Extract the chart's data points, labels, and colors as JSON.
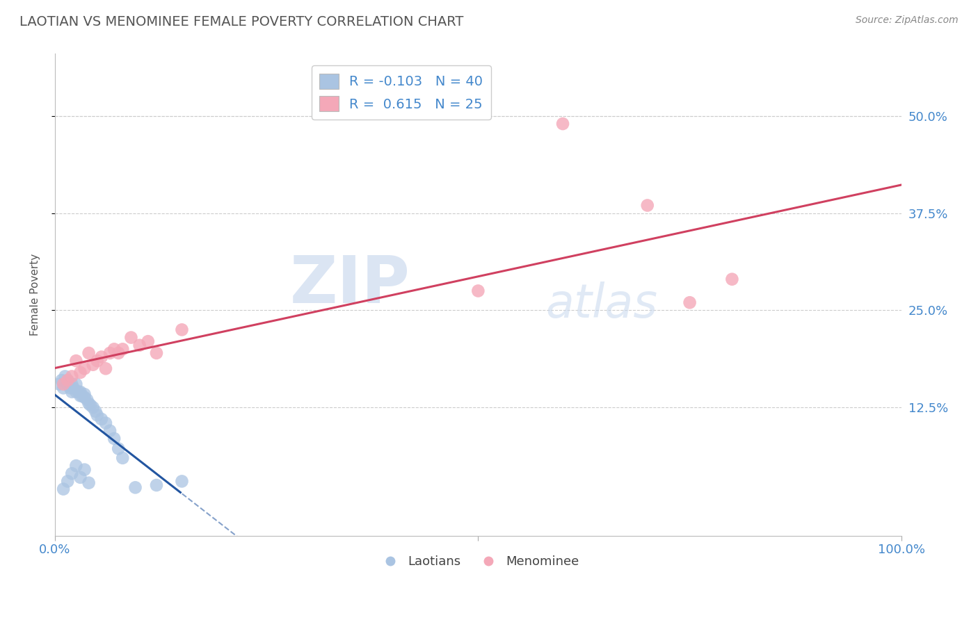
{
  "title": "LAOTIAN VS MENOMINEE FEMALE POVERTY CORRELATION CHART",
  "source": "Source: ZipAtlas.com",
  "ylabel": "Female Poverty",
  "xlim": [
    0.0,
    1.0
  ],
  "ylim": [
    -0.04,
    0.58
  ],
  "yticks": [
    0.125,
    0.25,
    0.375,
    0.5
  ],
  "ytick_labels": [
    "12.5%",
    "25.0%",
    "37.5%",
    "50.0%"
  ],
  "xticks": [
    0.0,
    1.0
  ],
  "xtick_labels": [
    "0.0%",
    "100.0%"
  ],
  "laotian_color": "#aac4e2",
  "menominee_color": "#f4a8b8",
  "laotian_line_color": "#2255a0",
  "menominee_line_color": "#d04060",
  "R_laotian": -0.103,
  "N_laotian": 40,
  "R_menominee": 0.615,
  "N_menominee": 25,
  "laotian_x": [
    0.005,
    0.008,
    0.01,
    0.012,
    0.015,
    0.015,
    0.018,
    0.02,
    0.02,
    0.022,
    0.025,
    0.025,
    0.028,
    0.03,
    0.03,
    0.032,
    0.035,
    0.035,
    0.038,
    0.04,
    0.042,
    0.045,
    0.048,
    0.05,
    0.055,
    0.06,
    0.065,
    0.07,
    0.075,
    0.08,
    0.01,
    0.015,
    0.02,
    0.025,
    0.03,
    0.035,
    0.04,
    0.095,
    0.12,
    0.15
  ],
  "laotian_y": [
    0.155,
    0.16,
    0.15,
    0.165,
    0.155,
    0.16,
    0.15,
    0.145,
    0.155,
    0.15,
    0.145,
    0.155,
    0.145,
    0.14,
    0.145,
    0.14,
    0.138,
    0.142,
    0.135,
    0.13,
    0.128,
    0.125,
    0.12,
    0.115,
    0.11,
    0.105,
    0.095,
    0.085,
    0.072,
    0.06,
    0.02,
    0.03,
    0.04,
    0.05,
    0.035,
    0.045,
    0.028,
    0.022,
    0.025,
    0.03
  ],
  "menominee_x": [
    0.01,
    0.015,
    0.02,
    0.025,
    0.03,
    0.035,
    0.04,
    0.045,
    0.05,
    0.055,
    0.06,
    0.065,
    0.07,
    0.075,
    0.08,
    0.09,
    0.1,
    0.11,
    0.12,
    0.15,
    0.5,
    0.6,
    0.7,
    0.75,
    0.8
  ],
  "menominee_y": [
    0.155,
    0.16,
    0.165,
    0.185,
    0.17,
    0.175,
    0.195,
    0.18,
    0.185,
    0.19,
    0.175,
    0.195,
    0.2,
    0.195,
    0.2,
    0.215,
    0.205,
    0.21,
    0.195,
    0.225,
    0.275,
    0.49,
    0.385,
    0.26,
    0.29
  ],
  "watermark_line1": "ZIP",
  "watermark_line2": "atlas",
  "background_color": "#ffffff",
  "grid_color": "#cccccc",
  "title_color": "#555555",
  "axis_label_color": "#4488cc"
}
